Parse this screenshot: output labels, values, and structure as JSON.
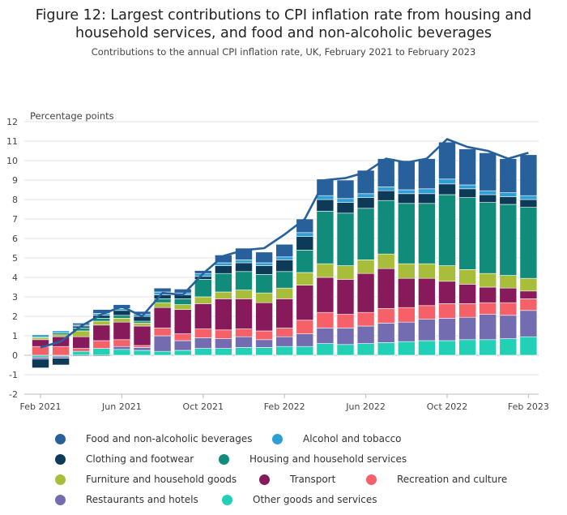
{
  "colors": {
    "food": "#27609a",
    "alcohol": "#2e9ed7",
    "clothing": "#0d3a56",
    "housing": "#118c7b",
    "furniture": "#a8bd3a",
    "transport": "#871a5b",
    "recreation": "#f66068",
    "restaurants": "#746cb1",
    "other": "#22d0b6",
    "cpi_line": "#27609a"
  },
  "chart_data": {
    "type": "bar",
    "stacked": true,
    "title_line1": "Figure 12: Largest contributions to CPI inflation rate from housing and",
    "title_line2": "household services, and food and non-alcoholic beverages",
    "subtitle": "Contributions to the annual CPI inflation rate, UK, February 2021 to February 2023",
    "ylabel": "Percentage points",
    "ylim": [
      -2,
      12
    ],
    "yticks": [
      -2,
      -1,
      0,
      1,
      2,
      3,
      4,
      5,
      6,
      7,
      8,
      9,
      10,
      11,
      12
    ],
    "xtick_labels": [
      "Feb 2021",
      "Jun 2021",
      "Oct 2021",
      "Feb 2022",
      "Jun 2022",
      "Oct 2022",
      "Feb 2023"
    ],
    "xtick_indices": [
      0,
      4,
      8,
      12,
      16,
      20,
      24
    ],
    "grid": "horizontal",
    "legend_position": "bottom",
    "categories": [
      "Feb 2021",
      "Mar 2021",
      "Apr 2021",
      "May 2021",
      "Jun 2021",
      "Jul 2021",
      "Aug 2021",
      "Sep 2021",
      "Oct 2021",
      "Nov 2021",
      "Dec 2021",
      "Jan 2022",
      "Feb 2022",
      "Mar 2022",
      "Apr 2022",
      "May 2022",
      "Jun 2022",
      "Jul 2022",
      "Aug 2022",
      "Sep 2022",
      "Oct 2022",
      "Nov 2022",
      "Dec 2022",
      "Jan 2023",
      "Feb 2023"
    ],
    "series": [
      {
        "key": "other",
        "name": "Other goods and services",
        "values": [
          -0.1,
          -0.05,
          0.2,
          0.35,
          0.3,
          0.25,
          0.2,
          0.25,
          0.35,
          0.35,
          0.4,
          0.4,
          0.45,
          0.45,
          0.6,
          0.55,
          0.6,
          0.65,
          0.7,
          0.75,
          0.75,
          0.8,
          0.8,
          0.85,
          0.95
        ]
      },
      {
        "key": "restaurants",
        "name": "Restaurants and hotels",
        "values": [
          -0.1,
          -0.1,
          -0.05,
          -0.05,
          0.15,
          0.15,
          0.8,
          0.5,
          0.55,
          0.5,
          0.55,
          0.4,
          0.5,
          0.65,
          0.8,
          0.85,
          0.9,
          1.0,
          1.0,
          1.1,
          1.15,
          1.15,
          1.3,
          1.2,
          1.35
        ]
      },
      {
        "key": "recreation",
        "name": "Recreation and culture",
        "values": [
          0.45,
          0.45,
          0.15,
          0.4,
          0.35,
          0.1,
          0.4,
          0.35,
          0.45,
          0.45,
          0.4,
          0.45,
          0.45,
          0.7,
          0.8,
          0.7,
          0.7,
          0.75,
          0.75,
          0.7,
          0.75,
          0.7,
          0.6,
          0.65,
          0.6
        ]
      },
      {
        "key": "transport",
        "name": "Transport",
        "values": [
          0.35,
          0.5,
          0.6,
          0.8,
          0.9,
          1.0,
          1.05,
          1.25,
          1.3,
          1.6,
          1.55,
          1.45,
          1.5,
          1.8,
          1.8,
          1.8,
          2.0,
          2.05,
          1.5,
          1.4,
          1.15,
          1.0,
          0.8,
          0.75,
          0.4
        ]
      },
      {
        "key": "furniture",
        "name": "Furniture and household goods",
        "values": [
          0.1,
          0.1,
          0.3,
          0.2,
          0.2,
          0.15,
          0.25,
          0.25,
          0.35,
          0.35,
          0.45,
          0.5,
          0.55,
          0.65,
          0.7,
          0.7,
          0.7,
          0.75,
          0.75,
          0.75,
          0.8,
          0.75,
          0.7,
          0.65,
          0.65
        ]
      },
      {
        "key": "housing",
        "name": "Housing and household services",
        "values": [
          0.05,
          0.1,
          0.15,
          0.15,
          0.15,
          0.1,
          0.2,
          0.3,
          0.9,
          0.95,
          0.95,
          0.95,
          0.85,
          1.15,
          2.7,
          2.7,
          2.65,
          2.75,
          3.1,
          3.1,
          3.65,
          3.7,
          3.65,
          3.65,
          3.65
        ]
      },
      {
        "key": "clothing",
        "name": "Clothing and footwear",
        "values": [
          -0.45,
          -0.35,
          0.1,
          0.15,
          0.25,
          0.25,
          0.2,
          0.2,
          0.15,
          0.4,
          0.45,
          0.45,
          0.6,
          0.7,
          0.6,
          0.55,
          0.55,
          0.5,
          0.5,
          0.5,
          0.55,
          0.45,
          0.4,
          0.4,
          0.4
        ]
      },
      {
        "key": "alcohol",
        "name": "Alcohol and tobacco",
        "values": [
          0.1,
          0.1,
          0.05,
          0.1,
          0.1,
          0.1,
          0.15,
          0.1,
          0.15,
          0.15,
          0.15,
          0.15,
          0.15,
          0.2,
          0.2,
          0.2,
          0.2,
          0.2,
          0.2,
          0.25,
          0.25,
          0.2,
          0.2,
          0.2,
          0.2
        ]
      },
      {
        "key": "food",
        "name": "Food and non-alcoholic beverages",
        "values": [
          0.0,
          0.0,
          0.1,
          0.2,
          0.2,
          0.15,
          0.2,
          0.2,
          0.15,
          0.4,
          0.6,
          0.55,
          0.65,
          0.7,
          0.85,
          0.95,
          1.2,
          1.45,
          1.5,
          1.55,
          1.9,
          1.85,
          1.95,
          1.75,
          2.1
        ]
      }
    ],
    "cpi_line": [
      0.4,
      0.7,
      1.5,
      2.1,
      2.5,
      2.0,
      3.2,
      3.1,
      4.2,
      5.1,
      5.4,
      5.5,
      6.2,
      7.0,
      9.0,
      9.1,
      9.4,
      10.1,
      9.9,
      10.1,
      11.1,
      10.7,
      10.5,
      10.1,
      10.4
    ],
    "legend_order": [
      "food",
      "alcohol",
      "clothing",
      "housing",
      "furniture",
      "transport",
      "recreation",
      "restaurants",
      "other"
    ]
  }
}
